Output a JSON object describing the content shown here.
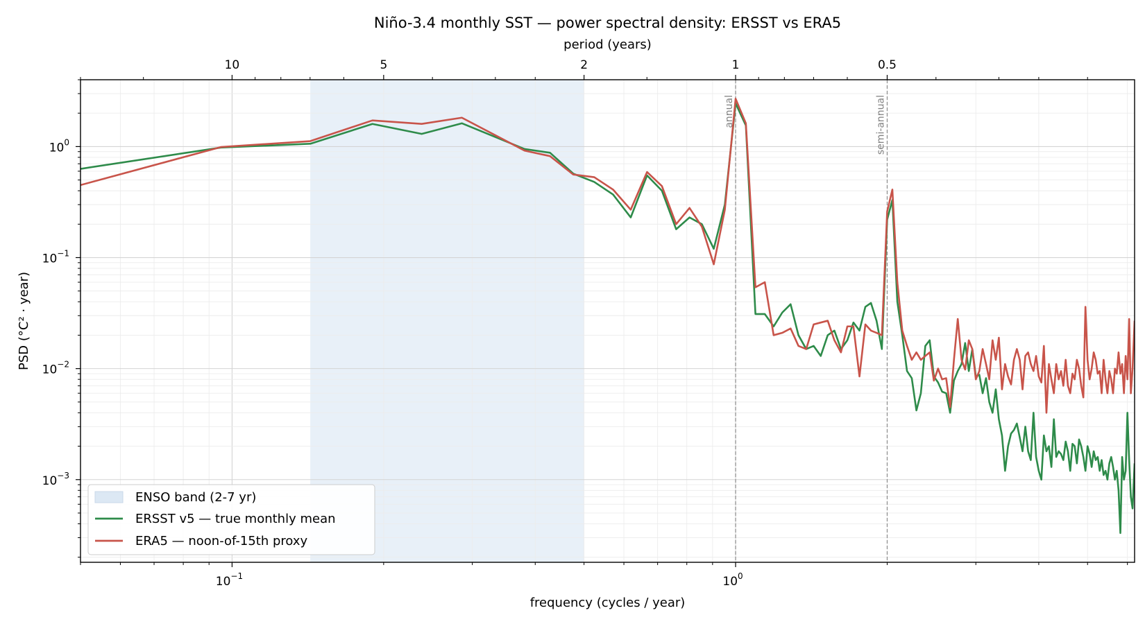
{
  "chart_data": {
    "type": "line",
    "title": "Niño-3.4 monthly SST — power spectral density: ERSST vs ERA5",
    "xlabel": "frequency (cycles / year)",
    "ylabel": "PSD  (°C² · year)",
    "secondary_xlabel": "period (years)",
    "xscale": "log",
    "yscale": "log",
    "xlim": [
      0.05,
      6.2
    ],
    "ylim": [
      0.00018,
      4.0
    ],
    "grid": true,
    "legend_position": "lower-left",
    "x_tick_labels": [
      {
        "value": 0.1,
        "base": "10",
        "exp": "−1"
      },
      {
        "value": 1.0,
        "base": "10",
        "exp": "0"
      }
    ],
    "y_tick_labels": [
      {
        "value": 1.0,
        "base": "10",
        "exp": "0"
      },
      {
        "value": 0.1,
        "base": "10",
        "exp": "−1"
      },
      {
        "value": 0.01,
        "base": "10",
        "exp": "−2"
      },
      {
        "value": 0.001,
        "base": "10",
        "exp": "−3"
      }
    ],
    "top_tick_labels": [
      {
        "period": 10,
        "label": "10"
      },
      {
        "period": 5,
        "label": "5"
      },
      {
        "period": 2,
        "label": "2"
      },
      {
        "period": 1,
        "label": "1"
      },
      {
        "period": 0.5,
        "label": "0.5"
      }
    ],
    "shaded_band": {
      "label": "ENSO band (2-7 yr)",
      "x_range": [
        0.143,
        0.5
      ],
      "color": "#dce8f4"
    },
    "vertical_lines": [
      {
        "x": 1.0,
        "label": "annual"
      },
      {
        "x": 2.0,
        "label": "semi-annual"
      }
    ],
    "series": [
      {
        "name": "ERSST v5 — true monthly mean",
        "color": "#2e8b4a",
        "points": [
          [
            0.05,
            0.63
          ],
          [
            0.095,
            0.98
          ],
          [
            0.143,
            1.06
          ],
          [
            0.19,
            1.6
          ],
          [
            0.238,
            1.3
          ],
          [
            0.286,
            1.62
          ],
          [
            0.381,
            0.95
          ],
          [
            0.428,
            0.88
          ],
          [
            0.476,
            0.57
          ],
          [
            0.524,
            0.48
          ],
          [
            0.571,
            0.37
          ],
          [
            0.619,
            0.23
          ],
          [
            0.667,
            0.55
          ],
          [
            0.714,
            0.4
          ],
          [
            0.762,
            0.18
          ],
          [
            0.81,
            0.23
          ],
          [
            0.857,
            0.2
          ],
          [
            0.905,
            0.12
          ],
          [
            0.952,
            0.3
          ],
          [
            1.0,
            2.45
          ],
          [
            1.048,
            1.55
          ],
          [
            1.095,
            0.031
          ],
          [
            1.143,
            0.031
          ],
          [
            1.19,
            0.024
          ],
          [
            1.238,
            0.032
          ],
          [
            1.286,
            0.038
          ],
          [
            1.333,
            0.02
          ],
          [
            1.381,
            0.015
          ],
          [
            1.429,
            0.016
          ],
          [
            1.476,
            0.013
          ],
          [
            1.524,
            0.02
          ],
          [
            1.571,
            0.022
          ],
          [
            1.619,
            0.015
          ],
          [
            1.667,
            0.018
          ],
          [
            1.714,
            0.026
          ],
          [
            1.762,
            0.022
          ],
          [
            1.81,
            0.036
          ],
          [
            1.857,
            0.039
          ],
          [
            1.905,
            0.027
          ],
          [
            1.952,
            0.015
          ],
          [
            2.0,
            0.22
          ],
          [
            2.048,
            0.33
          ],
          [
            2.095,
            0.04
          ],
          [
            2.143,
            0.02
          ],
          [
            2.19,
            0.0095
          ],
          [
            2.238,
            0.0082
          ],
          [
            2.286,
            0.0042
          ],
          [
            2.333,
            0.006
          ],
          [
            2.381,
            0.016
          ],
          [
            2.429,
            0.018
          ],
          [
            2.476,
            0.0085
          ],
          [
            2.524,
            0.0075
          ],
          [
            2.571,
            0.0062
          ],
          [
            2.619,
            0.006
          ],
          [
            2.667,
            0.004
          ],
          [
            2.714,
            0.0078
          ],
          [
            2.762,
            0.0095
          ],
          [
            2.81,
            0.011
          ],
          [
            2.857,
            0.017
          ],
          [
            2.905,
            0.0095
          ],
          [
            2.952,
            0.015
          ],
          [
            3.0,
            0.0085
          ],
          [
            3.048,
            0.0088
          ],
          [
            3.095,
            0.006
          ],
          [
            3.143,
            0.0082
          ],
          [
            3.19,
            0.005
          ],
          [
            3.238,
            0.004
          ],
          [
            3.286,
            0.0065
          ],
          [
            3.333,
            0.0035
          ],
          [
            3.381,
            0.0025
          ],
          [
            3.429,
            0.0012
          ],
          [
            3.476,
            0.002
          ],
          [
            3.524,
            0.0026
          ],
          [
            3.571,
            0.0028
          ],
          [
            3.619,
            0.0032
          ],
          [
            3.667,
            0.0024
          ],
          [
            3.714,
            0.0018
          ],
          [
            3.762,
            0.003
          ],
          [
            3.81,
            0.0018
          ],
          [
            3.857,
            0.0015
          ],
          [
            3.905,
            0.004
          ],
          [
            3.952,
            0.0016
          ],
          [
            4.0,
            0.0012
          ],
          [
            4.048,
            0.001
          ],
          [
            4.095,
            0.0025
          ],
          [
            4.143,
            0.0018
          ],
          [
            4.19,
            0.002
          ],
          [
            4.238,
            0.0013
          ],
          [
            4.286,
            0.0035
          ],
          [
            4.333,
            0.0016
          ],
          [
            4.381,
            0.0018
          ],
          [
            4.429,
            0.0017
          ],
          [
            4.476,
            0.0015
          ],
          [
            4.524,
            0.0022
          ],
          [
            4.571,
            0.0018
          ],
          [
            4.619,
            0.0012
          ],
          [
            4.667,
            0.0021
          ],
          [
            4.714,
            0.002
          ],
          [
            4.762,
            0.0014
          ],
          [
            4.81,
            0.0023
          ],
          [
            4.857,
            0.002
          ],
          [
            4.905,
            0.0016
          ],
          [
            4.952,
            0.0012
          ],
          [
            5.0,
            0.002
          ],
          [
            5.048,
            0.0017
          ],
          [
            5.095,
            0.0013
          ],
          [
            5.143,
            0.0018
          ],
          [
            5.19,
            0.0015
          ],
          [
            5.238,
            0.0016
          ],
          [
            5.286,
            0.0012
          ],
          [
            5.333,
            0.0015
          ],
          [
            5.381,
            0.0011
          ],
          [
            5.429,
            0.0012
          ],
          [
            5.476,
            0.001
          ],
          [
            5.524,
            0.0014
          ],
          [
            5.571,
            0.0016
          ],
          [
            5.619,
            0.0013
          ],
          [
            5.667,
            0.001
          ],
          [
            5.714,
            0.0012
          ],
          [
            5.762,
            0.0008
          ],
          [
            5.81,
            0.00033
          ],
          [
            5.857,
            0.0016
          ],
          [
            5.905,
            0.001
          ],
          [
            5.952,
            0.0012
          ],
          [
            6.0,
            0.004
          ],
          [
            6.048,
            0.0015
          ],
          [
            6.095,
            0.0007
          ],
          [
            6.143,
            0.00055
          ],
          [
            6.2,
            0.0014
          ]
        ]
      },
      {
        "name": "ERA5 — noon-of-15th proxy",
        "color": "#c8544a",
        "points": [
          [
            0.05,
            0.45
          ],
          [
            0.095,
            0.99
          ],
          [
            0.143,
            1.12
          ],
          [
            0.19,
            1.72
          ],
          [
            0.238,
            1.6
          ],
          [
            0.286,
            1.82
          ],
          [
            0.381,
            0.92
          ],
          [
            0.428,
            0.82
          ],
          [
            0.476,
            0.56
          ],
          [
            0.524,
            0.53
          ],
          [
            0.571,
            0.41
          ],
          [
            0.619,
            0.27
          ],
          [
            0.667,
            0.59
          ],
          [
            0.714,
            0.44
          ],
          [
            0.762,
            0.2
          ],
          [
            0.81,
            0.28
          ],
          [
            0.857,
            0.19
          ],
          [
            0.905,
            0.087
          ],
          [
            0.952,
            0.27
          ],
          [
            1.0,
            2.7
          ],
          [
            1.048,
            1.62
          ],
          [
            1.095,
            0.054
          ],
          [
            1.143,
            0.06
          ],
          [
            1.19,
            0.02
          ],
          [
            1.238,
            0.021
          ],
          [
            1.286,
            0.023
          ],
          [
            1.333,
            0.016
          ],
          [
            1.381,
            0.015
          ],
          [
            1.429,
            0.025
          ],
          [
            1.476,
            0.026
          ],
          [
            1.524,
            0.027
          ],
          [
            1.571,
            0.018
          ],
          [
            1.619,
            0.014
          ],
          [
            1.667,
            0.024
          ],
          [
            1.714,
            0.024
          ],
          [
            1.762,
            0.0085
          ],
          [
            1.81,
            0.025
          ],
          [
            1.857,
            0.022
          ],
          [
            1.905,
            0.021
          ],
          [
            1.952,
            0.02
          ],
          [
            2.0,
            0.26
          ],
          [
            2.048,
            0.41
          ],
          [
            2.095,
            0.06
          ],
          [
            2.143,
            0.022
          ],
          [
            2.19,
            0.016
          ],
          [
            2.238,
            0.012
          ],
          [
            2.286,
            0.014
          ],
          [
            2.333,
            0.012
          ],
          [
            2.381,
            0.013
          ],
          [
            2.429,
            0.014
          ],
          [
            2.476,
            0.0078
          ],
          [
            2.524,
            0.01
          ],
          [
            2.571,
            0.008
          ],
          [
            2.619,
            0.0082
          ],
          [
            2.667,
            0.0045
          ],
          [
            2.714,
            0.012
          ],
          [
            2.762,
            0.028
          ],
          [
            2.81,
            0.012
          ],
          [
            2.857,
            0.0098
          ],
          [
            2.905,
            0.018
          ],
          [
            2.952,
            0.015
          ],
          [
            3.0,
            0.008
          ],
          [
            3.048,
            0.0095
          ],
          [
            3.095,
            0.015
          ],
          [
            3.143,
            0.011
          ],
          [
            3.19,
            0.008
          ],
          [
            3.238,
            0.018
          ],
          [
            3.286,
            0.012
          ],
          [
            3.333,
            0.019
          ],
          [
            3.381,
            0.0065
          ],
          [
            3.429,
            0.011
          ],
          [
            3.476,
            0.0085
          ],
          [
            3.524,
            0.0072
          ],
          [
            3.571,
            0.012
          ],
          [
            3.619,
            0.015
          ],
          [
            3.667,
            0.012
          ],
          [
            3.714,
            0.0065
          ],
          [
            3.762,
            0.013
          ],
          [
            3.81,
            0.014
          ],
          [
            3.857,
            0.011
          ],
          [
            3.905,
            0.0095
          ],
          [
            3.952,
            0.013
          ],
          [
            4.0,
            0.0085
          ],
          [
            4.048,
            0.0075
          ],
          [
            4.095,
            0.016
          ],
          [
            4.143,
            0.004
          ],
          [
            4.19,
            0.011
          ],
          [
            4.238,
            0.008
          ],
          [
            4.286,
            0.006
          ],
          [
            4.333,
            0.011
          ],
          [
            4.381,
            0.008
          ],
          [
            4.429,
            0.0095
          ],
          [
            4.476,
            0.007
          ],
          [
            4.524,
            0.012
          ],
          [
            4.571,
            0.007
          ],
          [
            4.619,
            0.006
          ],
          [
            4.667,
            0.009
          ],
          [
            4.714,
            0.008
          ],
          [
            4.762,
            0.012
          ],
          [
            4.81,
            0.01
          ],
          [
            4.857,
            0.007
          ],
          [
            4.905,
            0.0055
          ],
          [
            4.952,
            0.036
          ],
          [
            5.0,
            0.012
          ],
          [
            5.048,
            0.008
          ],
          [
            5.095,
            0.01
          ],
          [
            5.143,
            0.014
          ],
          [
            5.19,
            0.012
          ],
          [
            5.238,
            0.009
          ],
          [
            5.286,
            0.0095
          ],
          [
            5.333,
            0.006
          ],
          [
            5.381,
            0.012
          ],
          [
            5.429,
            0.008
          ],
          [
            5.476,
            0.006
          ],
          [
            5.524,
            0.0095
          ],
          [
            5.571,
            0.008
          ],
          [
            5.619,
            0.006
          ],
          [
            5.667,
            0.01
          ],
          [
            5.714,
            0.009
          ],
          [
            5.762,
            0.014
          ],
          [
            5.81,
            0.009
          ],
          [
            5.857,
            0.011
          ],
          [
            5.905,
            0.006
          ],
          [
            5.952,
            0.013
          ],
          [
            6.0,
            0.008
          ],
          [
            6.048,
            0.028
          ],
          [
            6.095,
            0.006
          ],
          [
            6.143,
            0.01
          ],
          [
            6.2,
            0.027
          ]
        ]
      }
    ]
  }
}
